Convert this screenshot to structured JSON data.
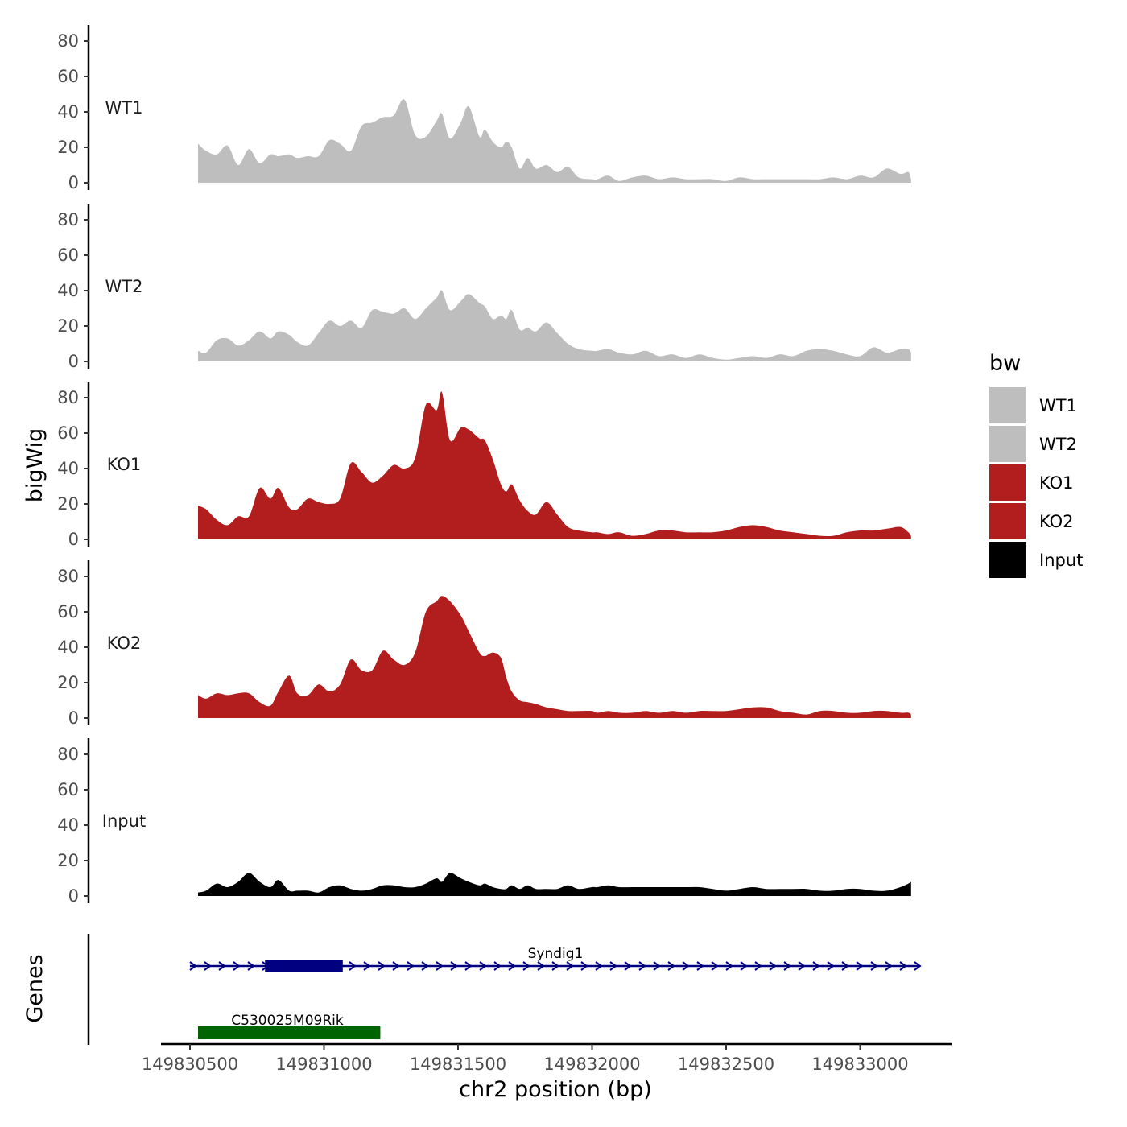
{
  "chart_data": {
    "type": "area",
    "y_axis_title": "bigWig",
    "x_axis_title": "chr2 position (bp)",
    "x_range": [
      149830430,
      149833250
    ],
    "x_ticks": [
      149830500,
      149831000,
      149831500,
      149832000,
      149832500,
      149833000
    ],
    "x_tick_labels": [
      "149830500",
      "149831000",
      "149831500",
      "149832000",
      "149832500",
      "149833000"
    ],
    "y_range": [
      0,
      88
    ],
    "y_ticks": [
      0,
      20,
      40,
      60,
      80
    ],
    "y_tick_labels": [
      "0",
      "20",
      "40",
      "60",
      "80"
    ],
    "x": [
      149830530,
      149830560,
      149830600,
      149830640,
      149830680,
      149830720,
      149830760,
      149830800,
      149830830,
      149830870,
      149830900,
      149830940,
      149830980,
      149831020,
      149831060,
      149831100,
      149831140,
      149831180,
      149831220,
      149831260,
      149831300,
      149831340,
      149831380,
      149831420,
      149831440,
      149831470,
      149831510,
      149831540,
      149831580,
      149831600,
      149831630,
      149831660,
      149831680,
      149831700,
      149831730,
      149831760,
      149831790,
      149831830,
      149831870,
      149831910,
      149831950,
      149832000,
      149832020,
      149832060,
      149832100,
      149832150,
      149832200,
      149832250,
      149832300,
      149832350,
      149832400,
      149832450,
      149832500,
      149832550,
      149832600,
      149832650,
      149832700,
      149832750,
      149832800,
      149832850,
      149832900,
      149832950,
      149833000,
      149833050,
      149833100,
      149833150,
      149833180,
      149833190
    ],
    "series": [
      {
        "name": "WT1",
        "label": "WT1",
        "color": "#bebebe",
        "values": [
          22,
          18,
          16,
          21,
          10,
          19,
          11,
          16,
          15,
          16,
          14,
          15,
          15,
          24,
          22,
          18,
          32,
          34,
          37,
          38,
          47,
          27,
          26,
          35,
          39,
          25,
          34,
          43,
          26,
          30,
          23,
          20,
          23,
          20,
          8,
          14,
          8,
          10,
          6,
          9,
          3,
          2,
          2,
          4,
          1,
          3,
          4,
          2,
          3,
          2,
          2,
          2,
          1,
          3,
          2,
          2,
          2,
          2,
          2,
          2,
          3,
          2,
          4,
          3,
          8,
          5,
          6,
          2
        ]
      },
      {
        "name": "WT2",
        "label": "WT2",
        "color": "#bebebe",
        "values": [
          6,
          5,
          12,
          13,
          9,
          12,
          17,
          13,
          17,
          15,
          11,
          9,
          16,
          23,
          20,
          23,
          19,
          29,
          28,
          27,
          30,
          24,
          30,
          36,
          40,
          29,
          34,
          38,
          33,
          31,
          24,
          26,
          24,
          29,
          18,
          19,
          17,
          22,
          16,
          10,
          7,
          6,
          6,
          7,
          5,
          4,
          6,
          3,
          4,
          2,
          4,
          2,
          1,
          2,
          3,
          2,
          4,
          3,
          6,
          7,
          6,
          4,
          3,
          8,
          5,
          7,
          7,
          5
        ]
      },
      {
        "name": "KO1",
        "label": "KO1",
        "color": "#b21e1e",
        "values": [
          19,
          17,
          11,
          8,
          13,
          13,
          29,
          23,
          29,
          18,
          17,
          23,
          21,
          20,
          23,
          43,
          38,
          32,
          36,
          42,
          40,
          46,
          76,
          73,
          83,
          56,
          63,
          62,
          57,
          56,
          45,
          31,
          27,
          31,
          22,
          16,
          14,
          21,
          14,
          7,
          5,
          4,
          4,
          3,
          4,
          2,
          3,
          5,
          5,
          4,
          4,
          4,
          5,
          7,
          8,
          7,
          5,
          4,
          3,
          2,
          2,
          4,
          5,
          5,
          6,
          7,
          4,
          2
        ]
      },
      {
        "name": "KO2",
        "label": "KO2",
        "color": "#b21e1e",
        "values": [
          13,
          11,
          14,
          13,
          14,
          14,
          9,
          7,
          15,
          24,
          14,
          13,
          19,
          15,
          19,
          33,
          27,
          27,
          38,
          33,
          30,
          37,
          60,
          66,
          69,
          66,
          58,
          49,
          37,
          35,
          37,
          34,
          23,
          15,
          10,
          9,
          8,
          6,
          5,
          4,
          4,
          4,
          3,
          4,
          3,
          3,
          4,
          3,
          4,
          3,
          4,
          4,
          4,
          5,
          6,
          6,
          4,
          3,
          2,
          4,
          4,
          3,
          3,
          4,
          4,
          3,
          3,
          2
        ]
      },
      {
        "name": "Input",
        "label": "Input",
        "color": "#000000",
        "values": [
          2,
          3,
          7,
          5,
          8,
          13,
          8,
          5,
          9,
          3,
          3,
          3,
          2,
          5,
          6,
          4,
          3,
          4,
          6,
          6,
          5,
          5,
          7,
          10,
          8,
          13,
          10,
          8,
          6,
          7,
          5,
          4,
          4,
          6,
          4,
          6,
          4,
          4,
          4,
          6,
          4,
          5,
          5,
          6,
          5,
          5,
          5,
          5,
          5,
          5,
          5,
          4,
          3,
          4,
          5,
          4,
          4,
          4,
          4,
          3,
          3,
          4,
          4,
          3,
          3,
          5,
          7,
          8
        ]
      }
    ],
    "legend": {
      "title": "bw",
      "position": "right",
      "entries": [
        {
          "label": "WT1",
          "color": "#bebebe"
        },
        {
          "label": "WT2",
          "color": "#bebebe"
        },
        {
          "label": "KO1",
          "color": "#b21e1e"
        },
        {
          "label": "KO2",
          "color": "#b21e1e"
        },
        {
          "label": "Input",
          "color": "#000000"
        }
      ]
    },
    "genes_track": {
      "label": "Genes",
      "genes": [
        {
          "name": "Syndig1",
          "start": 149830500,
          "end": 149833220,
          "strand": "+",
          "color": "#000080",
          "exons": [
            [
              149830780,
              149831070
            ]
          ]
        },
        {
          "name": "C530025M09Rik",
          "start": 149830530,
          "end": 149831210,
          "strand": "",
          "color": "#006400",
          "exons": [
            [
              149830530,
              149831210
            ]
          ]
        }
      ]
    }
  }
}
